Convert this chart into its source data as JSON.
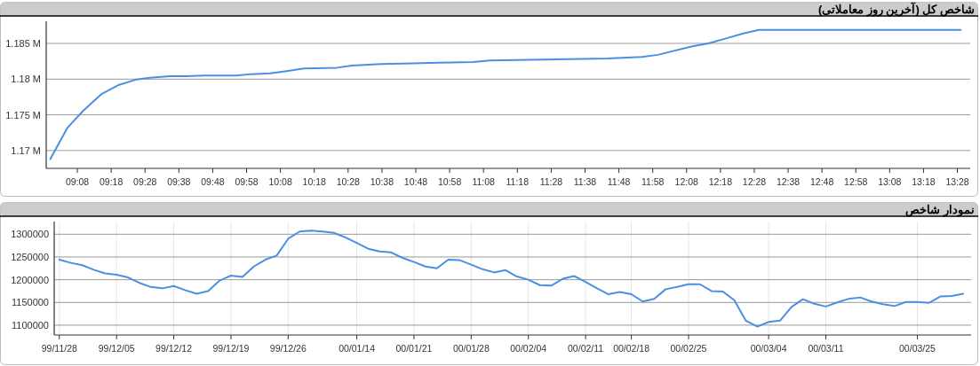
{
  "chart_data": [
    {
      "type": "line",
      "title": "شاخص کل (آخرین روز معاملاتی)",
      "grid": "y",
      "x": [
        9.0,
        9.085,
        9.163,
        9.252,
        9.339,
        9.418,
        9.488,
        9.588,
        9.667,
        9.755,
        9.847,
        9.917,
        9.987,
        10.083,
        10.157,
        10.25,
        10.412,
        10.485,
        10.63,
        10.783,
        10.91,
        11.082,
        11.163,
        11.742,
        11.913,
        11.992,
        12.162,
        12.24,
        12.328,
        12.412,
        12.49,
        13.483
      ],
      "series": [
        {
          "color": "#4a90e2",
          "values": [
            1.1688,
            1.1732,
            1.1756,
            1.1779,
            1.1792,
            1.1799,
            1.1802,
            1.1804,
            1.1804,
            1.1805,
            1.1805,
            1.1805,
            1.1807,
            1.1808,
            1.1811,
            1.1815,
            1.1816,
            1.1819,
            1.1821,
            1.1822,
            1.1823,
            1.1824,
            1.1826,
            1.1829,
            1.1831,
            1.1834,
            1.1846,
            1.185,
            1.1857,
            1.1864,
            1.1869,
            1.1869
          ]
        }
      ],
      "xlim": [
        8.98,
        13.53
      ],
      "ylim": [
        1.1675,
        1.1881
      ],
      "xticks": [
        {
          "value": 9.1333,
          "label": "09:08"
        },
        {
          "value": 9.3,
          "label": "09:18"
        },
        {
          "value": 9.4667,
          "label": "09:28"
        },
        {
          "value": 9.6333,
          "label": "09:38"
        },
        {
          "value": 9.8,
          "label": "09:48"
        },
        {
          "value": 9.9667,
          "label": "09:58"
        },
        {
          "value": 10.1333,
          "label": "10:08"
        },
        {
          "value": 10.3,
          "label": "10:18"
        },
        {
          "value": 10.4667,
          "label": "10:28"
        },
        {
          "value": 10.6333,
          "label": "10:38"
        },
        {
          "value": 10.8,
          "label": "10:48"
        },
        {
          "value": 10.9667,
          "label": "10:58"
        },
        {
          "value": 11.1333,
          "label": "11:08"
        },
        {
          "value": 11.3,
          "label": "11:18"
        },
        {
          "value": 11.4667,
          "label": "11:28"
        },
        {
          "value": 11.6333,
          "label": "11:38"
        },
        {
          "value": 11.8,
          "label": "11:48"
        },
        {
          "value": 11.9667,
          "label": "11:58"
        },
        {
          "value": 12.1333,
          "label": "12:08"
        },
        {
          "value": 12.3,
          "label": "12:18"
        },
        {
          "value": 12.4667,
          "label": "12:28"
        },
        {
          "value": 12.6333,
          "label": "12:38"
        },
        {
          "value": 12.8,
          "label": "12:48"
        },
        {
          "value": 12.9667,
          "label": "12:58"
        },
        {
          "value": 13.1333,
          "label": "13:08"
        },
        {
          "value": 13.3,
          "label": "13:18"
        },
        {
          "value": 13.4667,
          "label": "13:28"
        }
      ],
      "yticks": [
        {
          "value": 1.17,
          "label": "1.17 M"
        },
        {
          "value": 1.175,
          "label": "1.175 M"
        },
        {
          "value": 1.18,
          "label": "1.18 M"
        },
        {
          "value": 1.185,
          "label": "1.185 M"
        }
      ]
    },
    {
      "type": "line",
      "title": "نمودار شاخص",
      "grid": true,
      "categories": [
        "99/11/28",
        null,
        null,
        null,
        null,
        "99/12/05",
        null,
        null,
        null,
        null,
        "99/12/12",
        null,
        null,
        null,
        null,
        "99/12/19",
        null,
        null,
        null,
        null,
        "99/12/26",
        null,
        null,
        null,
        null,
        null,
        "00/01/14",
        null,
        null,
        null,
        null,
        "00/01/21",
        null,
        null,
        null,
        null,
        "00/01/28",
        null,
        null,
        null,
        null,
        "00/02/04",
        null,
        null,
        null,
        null,
        "00/02/11",
        null,
        null,
        null,
        "00/02/18",
        null,
        null,
        null,
        null,
        "00/02/25",
        null,
        null,
        null,
        null,
        null,
        null,
        "00/03/04",
        null,
        null,
        null,
        null,
        "00/03/11",
        null,
        null,
        null,
        null,
        null,
        null,
        null,
        "00/03/25",
        null,
        null,
        null,
        null
      ],
      "series": [
        {
          "color": "#4a90e2",
          "values": [
            1244000,
            1237000,
            1232000,
            1222000,
            1214000,
            1211000,
            1205000,
            1193000,
            1184000,
            1181000,
            1186000,
            1177000,
            1169000,
            1175000,
            1198000,
            1209000,
            1206000,
            1229000,
            1244000,
            1253000,
            1290000,
            1306000,
            1308000,
            1306000,
            1303000,
            1293000,
            1281000,
            1268000,
            1262000,
            1260000,
            1248000,
            1239000,
            1229000,
            1225000,
            1244000,
            1243000,
            1233000,
            1223000,
            1216000,
            1221000,
            1207000,
            1200000,
            1188000,
            1187000,
            1202000,
            1208000,
            1195000,
            1181000,
            1168000,
            1173000,
            1168000,
            1152000,
            1158000,
            1179000,
            1184000,
            1190000,
            1190000,
            1175000,
            1174000,
            1155000,
            1110000,
            1097000,
            1107000,
            1110000,
            1140000,
            1157000,
            1147000,
            1141000,
            1150000,
            1158000,
            1161000,
            1152000,
            1146000,
            1142000,
            1151000,
            1151000,
            1149000,
            1163000,
            1164000,
            1169000
          ]
        }
      ],
      "ylim": [
        1078400,
        1327900
      ],
      "yticks": [
        1100000,
        1150000,
        1200000,
        1250000,
        1300000
      ]
    }
  ]
}
